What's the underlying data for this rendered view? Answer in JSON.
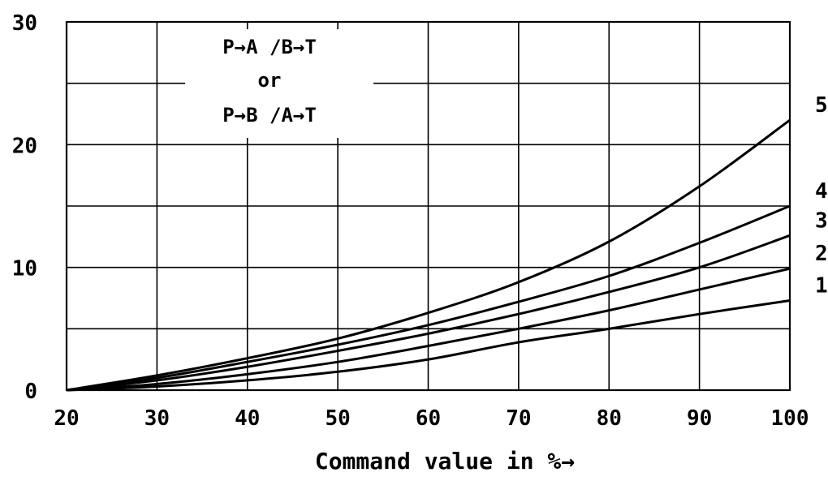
{
  "chart_data": {
    "type": "line",
    "xlabel": "Command value in %→",
    "ylabel": "",
    "xlim": [
      20,
      100
    ],
    "ylim": [
      0,
      30
    ],
    "x_ticks": [
      "20",
      "30",
      "40",
      "50",
      "60",
      "70",
      "80",
      "90",
      "100"
    ],
    "y_ticks": [
      "0",
      "10",
      "20",
      "30"
    ],
    "grid": true,
    "annotation": [
      "P→A /B→T",
      "or",
      "P→B /A→T"
    ],
    "x": [
      20,
      30,
      40,
      50,
      60,
      70,
      80,
      90,
      100
    ],
    "series": [
      {
        "name": "1",
        "values": [
          0,
          0.3,
          0.8,
          1.5,
          2.5,
          3.9,
          5.0,
          6.2,
          7.3
        ]
      },
      {
        "name": "2",
        "values": [
          0,
          0.5,
          1.3,
          2.3,
          3.6,
          5.0,
          6.5,
          8.2,
          9.9
        ]
      },
      {
        "name": "3",
        "values": [
          0,
          0.8,
          1.9,
          3.2,
          4.6,
          6.2,
          8.0,
          10.0,
          12.6
        ]
      },
      {
        "name": "4",
        "values": [
          0,
          1.0,
          2.3,
          3.7,
          5.3,
          7.2,
          9.3,
          12.0,
          15.0
        ]
      },
      {
        "name": "5",
        "values": [
          0,
          1.2,
          2.6,
          4.2,
          6.3,
          8.8,
          12.1,
          16.6,
          22.0
        ]
      }
    ]
  }
}
